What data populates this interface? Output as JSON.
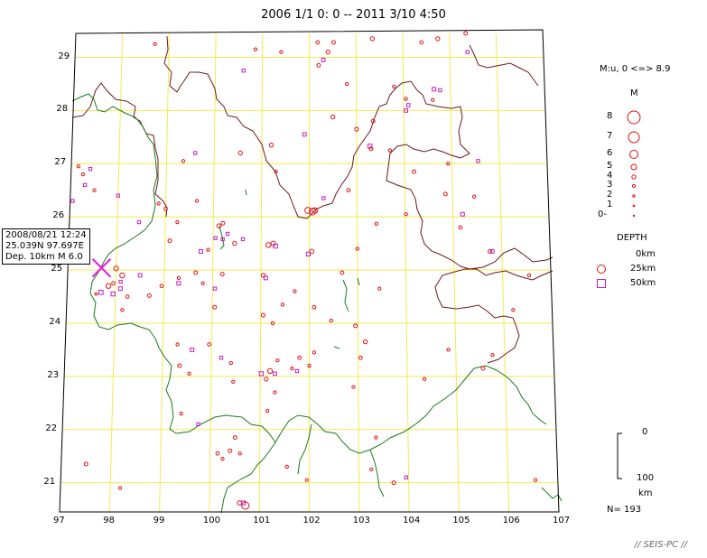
{
  "title": "2006 1/1  0: 0 -- 2011  3/10  4:50",
  "axes": {
    "lon_labels": [
      "97",
      "98",
      "99",
      "100",
      "101",
      "102",
      "103",
      "104",
      "105",
      "106",
      "107"
    ],
    "lat_labels": [
      "21",
      "22",
      "23",
      "24",
      "25",
      "26",
      "27",
      "28",
      "29"
    ]
  },
  "event_callout": {
    "line1": "2008/08/21 12:24",
    "line2": "25.039N  97.697E",
    "line3": "Dep. 10km    M 6.0",
    "lat": 25.039,
    "lon": 97.697,
    "depth_km": 10,
    "magnitude": 6.0
  },
  "legend": {
    "mag_range": "M:u, 0 <=> 8.9",
    "mag_heading": "M",
    "mag_labels": [
      "8",
      "7",
      "6",
      "5",
      "4",
      "3",
      "2",
      "1",
      "0-"
    ],
    "mag_values": [
      8,
      7,
      6,
      5,
      4,
      3,
      2,
      1,
      0
    ],
    "depth_heading": "DEPTH",
    "depth_labels": [
      "0km",
      "25km",
      "50km"
    ],
    "depth_scale_top": "0",
    "depth_scale_bottom": "100",
    "depth_scale_unit": "km",
    "count": "N= 193"
  },
  "credit": "// SEIS-PC //",
  "colors": {
    "graticule": "#f5ea50",
    "border_china": "#6b1a1a",
    "border_foreign": "#1a7a1a",
    "shallow": "#e01010",
    "mid": "#e01010",
    "deep": "#c020c0",
    "mainshock": "#e020e0"
  },
  "events": [
    {
      "lon": 102.07,
      "lat": 26.1,
      "m": 4.9,
      "d": "mid"
    },
    {
      "lon": 101.97,
      "lat": 26.12,
      "m": 4.5,
      "d": "mid"
    },
    {
      "lon": 102.12,
      "lat": 26.12,
      "m": 4.2,
      "d": "mid"
    },
    {
      "lon": 98.13,
      "lat": 24.9,
      "m": 4.0,
      "d": "mid"
    },
    {
      "lon": 98.0,
      "lat": 25.03,
      "m": 3.8,
      "d": "mid"
    },
    {
      "lon": 97.85,
      "lat": 24.7,
      "m": 3.9,
      "d": "mid"
    },
    {
      "lon": 97.7,
      "lat": 24.58,
      "m": 3.6,
      "d": "deep"
    },
    {
      "lon": 97.95,
      "lat": 24.55,
      "m": 3.5,
      "d": "deep"
    },
    {
      "lon": 98.1,
      "lat": 24.65,
      "m": 3.3,
      "d": "deep"
    },
    {
      "lon": 98.25,
      "lat": 24.5,
      "m": 3.2,
      "d": "mid"
    },
    {
      "lon": 98.5,
      "lat": 24.9,
      "m": 3.2,
      "d": "deep"
    },
    {
      "lon": 97.95,
      "lat": 24.75,
      "m": 3.2,
      "d": "mid"
    },
    {
      "lon": 98.1,
      "lat": 24.78,
      "m": 3.0,
      "d": "deep"
    },
    {
      "lon": 97.6,
      "lat": 24.55,
      "m": 2.8,
      "d": "mid"
    },
    {
      "lon": 100.72,
      "lat": 20.57,
      "m": 5.2,
      "d": "mid"
    },
    {
      "lon": 100.6,
      "lat": 20.62,
      "m": 3.6,
      "d": "mid"
    },
    {
      "lon": 100.68,
      "lat": 20.62,
      "m": 3.4,
      "d": "deep"
    },
    {
      "lon": 101.15,
      "lat": 25.47,
      "m": 4.0,
      "d": "mid"
    },
    {
      "lon": 101.25,
      "lat": 25.5,
      "m": 3.8,
      "d": "mid"
    },
    {
      "lon": 101.3,
      "lat": 25.45,
      "m": 3.5,
      "d": "deep"
    },
    {
      "lon": 101.05,
      "lat": 24.9,
      "m": 3.5,
      "d": "mid"
    },
    {
      "lon": 101.1,
      "lat": 24.85,
      "m": 3.3,
      "d": "deep"
    },
    {
      "lon": 101.2,
      "lat": 23.1,
      "m": 3.9,
      "d": "mid"
    },
    {
      "lon": 101.02,
      "lat": 23.05,
      "m": 3.5,
      "d": "deep"
    },
    {
      "lon": 101.12,
      "lat": 22.95,
      "m": 3.4,
      "d": "mid"
    },
    {
      "lon": 101.3,
      "lat": 23.05,
      "m": 3.2,
      "d": "deep"
    },
    {
      "lon": 102.05,
      "lat": 25.35,
      "m": 3.7,
      "d": "mid"
    },
    {
      "lon": 101.98,
      "lat": 25.3,
      "m": 3.4,
      "d": "deep"
    },
    {
      "lon": 102.4,
      "lat": 29.1,
      "m": 3.5,
      "d": "mid"
    },
    {
      "lon": 102.18,
      "lat": 29.28,
      "m": 3.2,
      "d": "mid"
    },
    {
      "lon": 102.52,
      "lat": 29.28,
      "m": 3.3,
      "d": "mid"
    },
    {
      "lon": 102.2,
      "lat": 28.85,
      "m": 3.3,
      "d": "mid"
    },
    {
      "lon": 102.3,
      "lat": 28.95,
      "m": 3.2,
      "d": "deep"
    },
    {
      "lon": 103.35,
      "lat": 29.35,
      "m": 3.5,
      "d": "mid"
    },
    {
      "lon": 104.75,
      "lat": 29.35,
      "m": 3.5,
      "d": "mid"
    },
    {
      "lon": 104.4,
      "lat": 29.28,
      "m": 3.2,
      "d": "mid"
    },
    {
      "lon": 105.35,
      "lat": 29.45,
      "m": 3.3,
      "d": "mid"
    },
    {
      "lon": 105.38,
      "lat": 29.1,
      "m": 3.0,
      "d": "deep"
    },
    {
      "lon": 104.65,
      "lat": 28.4,
      "m": 3.3,
      "d": "deep"
    },
    {
      "lon": 104.78,
      "lat": 28.38,
      "m": 3.0,
      "d": "deep"
    },
    {
      "lon": 104.62,
      "lat": 28.2,
      "m": 3.0,
      "d": "mid"
    },
    {
      "lon": 104.05,
      "lat": 28.0,
      "m": 3.2,
      "d": "deep"
    },
    {
      "lon": 104.05,
      "lat": 28.22,
      "m": 3.0,
      "d": "mid"
    },
    {
      "lon": 104.1,
      "lat": 28.1,
      "m": 3.1,
      "d": "deep"
    },
    {
      "lon": 103.35,
      "lat": 27.8,
      "m": 3.3,
      "d": "mid"
    },
    {
      "lon": 103.28,
      "lat": 27.33,
      "m": 3.5,
      "d": "deep"
    },
    {
      "lon": 103.3,
      "lat": 27.28,
      "m": 3.3,
      "d": "mid"
    },
    {
      "lon": 103.0,
      "lat": 27.65,
      "m": 3.4,
      "d": "mid"
    },
    {
      "lon": 102.5,
      "lat": 27.88,
      "m": 3.5,
      "d": "mid"
    },
    {
      "lon": 101.9,
      "lat": 27.55,
      "m": 3.2,
      "d": "deep"
    },
    {
      "lon": 101.2,
      "lat": 27.35,
      "m": 3.5,
      "d": "mid"
    },
    {
      "lon": 100.55,
      "lat": 27.2,
      "m": 3.5,
      "d": "mid"
    },
    {
      "lon": 100.6,
      "lat": 28.75,
      "m": 3.0,
      "d": "deep"
    },
    {
      "lon": 103.7,
      "lat": 27.25,
      "m": 3.0,
      "d": "mid"
    },
    {
      "lon": 102.82,
      "lat": 26.5,
      "m": 3.2,
      "d": "mid"
    },
    {
      "lon": 104.2,
      "lat": 26.85,
      "m": 3.3,
      "d": "mid"
    },
    {
      "lon": 104.02,
      "lat": 26.05,
      "m": 3.0,
      "d": "mid"
    },
    {
      "lon": 104.85,
      "lat": 26.43,
      "m": 3.3,
      "d": "mid"
    },
    {
      "lon": 103.4,
      "lat": 25.87,
      "m": 3.0,
      "d": "mid"
    },
    {
      "lon": 102.68,
      "lat": 24.95,
      "m": 3.3,
      "d": "mid"
    },
    {
      "lon": 100.2,
      "lat": 25.88,
      "m": 3.3,
      "d": "mid"
    },
    {
      "lon": 100.12,
      "lat": 25.83,
      "m": 3.6,
      "d": "mid"
    },
    {
      "lon": 100.3,
      "lat": 25.68,
      "m": 3.0,
      "d": "deep"
    },
    {
      "lon": 100.05,
      "lat": 25.6,
      "m": 3.0,
      "d": "deep"
    },
    {
      "lon": 100.2,
      "lat": 25.58,
      "m": 3.0,
      "d": "deep"
    },
    {
      "lon": 99.75,
      "lat": 25.35,
      "m": 3.3,
      "d": "deep"
    },
    {
      "lon": 99.9,
      "lat": 25.38,
      "m": 3.0,
      "d": "mid"
    },
    {
      "lon": 99.65,
      "lat": 26.3,
      "m": 3.0,
      "d": "mid"
    },
    {
      "lon": 99.0,
      "lat": 26.15,
      "m": 3.2,
      "d": "mid"
    },
    {
      "lon": 99.1,
      "lat": 25.55,
      "m": 3.3,
      "d": "mid"
    },
    {
      "lon": 100.45,
      "lat": 25.5,
      "m": 3.5,
      "d": "mid"
    },
    {
      "lon": 100.62,
      "lat": 25.58,
      "m": 3.0,
      "d": "deep"
    },
    {
      "lon": 99.3,
      "lat": 24.75,
      "m": 3.3,
      "d": "deep"
    },
    {
      "lon": 99.3,
      "lat": 24.85,
      "m": 3.0,
      "d": "mid"
    },
    {
      "lon": 99.65,
      "lat": 24.95,
      "m": 3.3,
      "d": "mid"
    },
    {
      "lon": 99.8,
      "lat": 24.75,
      "m": 3.0,
      "d": "mid"
    },
    {
      "lon": 100.2,
      "lat": 24.92,
      "m": 3.3,
      "d": "mid"
    },
    {
      "lon": 100.05,
      "lat": 24.65,
      "m": 3.0,
      "d": "deep"
    },
    {
      "lon": 98.7,
      "lat": 24.52,
      "m": 3.3,
      "d": "mid"
    },
    {
      "lon": 98.95,
      "lat": 24.7,
      "m": 3.2,
      "d": "mid"
    },
    {
      "lon": 99.6,
      "lat": 23.5,
      "m": 3.3,
      "d": "deep"
    },
    {
      "lon": 99.35,
      "lat": 23.2,
      "m": 3.3,
      "d": "mid"
    },
    {
      "lon": 99.3,
      "lat": 23.6,
      "m": 3.0,
      "d": "mid"
    },
    {
      "lon": 99.55,
      "lat": 23.05,
      "m": 3.0,
      "d": "mid"
    },
    {
      "lon": 100.05,
      "lat": 24.3,
      "m": 3.3,
      "d": "mid"
    },
    {
      "lon": 99.95,
      "lat": 23.6,
      "m": 3.2,
      "d": "mid"
    },
    {
      "lon": 100.2,
      "lat": 23.35,
      "m": 3.0,
      "d": "deep"
    },
    {
      "lon": 100.4,
      "lat": 23.25,
      "m": 3.0,
      "d": "mid"
    },
    {
      "lon": 101.05,
      "lat": 24.15,
      "m": 3.3,
      "d": "mid"
    },
    {
      "lon": 101.25,
      "lat": 24.0,
      "m": 3.0,
      "d": "mid"
    },
    {
      "lon": 101.3,
      "lat": 22.7,
      "m": 3.0,
      "d": "mid"
    },
    {
      "lon": 101.15,
      "lat": 22.35,
      "m": 3.0,
      "d": "mid"
    },
    {
      "lon": 101.8,
      "lat": 23.35,
      "m": 3.2,
      "d": "mid"
    },
    {
      "lon": 101.65,
      "lat": 23.15,
      "m": 3.0,
      "d": "mid"
    },
    {
      "lon": 101.35,
      "lat": 23.3,
      "m": 3.0,
      "d": "mid"
    },
    {
      "lon": 101.75,
      "lat": 23.1,
      "m": 3.0,
      "d": "deep"
    },
    {
      "lon": 102.1,
      "lat": 23.45,
      "m": 3.0,
      "d": "mid"
    },
    {
      "lon": 102.0,
      "lat": 23.2,
      "m": 3.0,
      "d": "mid"
    },
    {
      "lon": 102.1,
      "lat": 24.3,
      "m": 3.2,
      "d": "mid"
    },
    {
      "lon": 102.45,
      "lat": 24.05,
      "m": 3.0,
      "d": "mid"
    },
    {
      "lon": 102.95,
      "lat": 23.95,
      "m": 3.3,
      "d": "mid"
    },
    {
      "lon": 103.15,
      "lat": 23.65,
      "m": 3.5,
      "d": "mid"
    },
    {
      "lon": 103.05,
      "lat": 23.35,
      "m": 3.2,
      "d": "mid"
    },
    {
      "lon": 102.9,
      "lat": 22.8,
      "m": 3.0,
      "d": "mid"
    },
    {
      "lon": 103.35,
      "lat": 21.85,
      "m": 3.0,
      "d": "mid"
    },
    {
      "lon": 103.25,
      "lat": 21.25,
      "m": 3.0,
      "d": "mid"
    },
    {
      "lon": 103.7,
      "lat": 21.0,
      "m": 3.3,
      "d": "mid"
    },
    {
      "lon": 103.95,
      "lat": 21.1,
      "m": 3.0,
      "d": "deep"
    },
    {
      "lon": 104.85,
      "lat": 23.5,
      "m": 3.0,
      "d": "mid"
    },
    {
      "lon": 104.35,
      "lat": 22.95,
      "m": 3.0,
      "d": "mid"
    },
    {
      "lon": 105.55,
      "lat": 23.15,
      "m": 3.3,
      "d": "mid"
    },
    {
      "lon": 105.75,
      "lat": 23.4,
      "m": 3.0,
      "d": "mid"
    },
    {
      "lon": 105.15,
      "lat": 25.8,
      "m": 3.2,
      "d": "mid"
    },
    {
      "lon": 105.75,
      "lat": 25.35,
      "m": 3.3,
      "d": "mid"
    },
    {
      "lon": 105.8,
      "lat": 25.35,
      "m": 3.2,
      "d": "deep"
    },
    {
      "lon": 106.55,
      "lat": 24.9,
      "m": 3.0,
      "d": "mid"
    },
    {
      "lon": 105.2,
      "lat": 26.05,
      "m": 3.3,
      "d": "deep"
    },
    {
      "lon": 105.45,
      "lat": 26.38,
      "m": 3.0,
      "d": "mid"
    },
    {
      "lon": 104.92,
      "lat": 27.0,
      "m": 3.0,
      "d": "mid"
    },
    {
      "lon": 105.55,
      "lat": 27.05,
      "m": 3.0,
      "d": "deep"
    },
    {
      "lon": 106.2,
      "lat": 24.25,
      "m": 3.0,
      "d": "mid"
    },
    {
      "lon": 106.55,
      "lat": 21.05,
      "m": 3.0,
      "d": "mid"
    },
    {
      "lon": 101.95,
      "lat": 21.05,
      "m": 3.0,
      "d": "mid"
    },
    {
      "lon": 100.5,
      "lat": 21.85,
      "m": 3.3,
      "d": "mid"
    },
    {
      "lon": 100.6,
      "lat": 21.55,
      "m": 3.0,
      "d": "mid"
    },
    {
      "lon": 100.4,
      "lat": 21.6,
      "m": 3.3,
      "d": "mid"
    },
    {
      "lon": 100.25,
      "lat": 21.45,
      "m": 3.0,
      "d": "mid"
    },
    {
      "lon": 100.15,
      "lat": 21.55,
      "m": 3.2,
      "d": "mid"
    },
    {
      "lon": 99.75,
      "lat": 22.1,
      "m": 3.0,
      "d": "deep"
    },
    {
      "lon": 98.2,
      "lat": 20.9,
      "m": 3.0,
      "d": "mid"
    },
    {
      "lon": 97.5,
      "lat": 21.35,
      "m": 3.3,
      "d": "mid"
    },
    {
      "lon": 97.5,
      "lat": 26.5,
      "m": 3.0,
      "d": "mid"
    },
    {
      "lon": 97.3,
      "lat": 26.6,
      "m": 3.0,
      "d": "deep"
    },
    {
      "lon": 97.4,
      "lat": 26.9,
      "m": 3.0,
      "d": "deep"
    },
    {
      "lon": 97.15,
      "lat": 26.95,
      "m": 3.0,
      "d": "mid"
    },
    {
      "lon": 97.25,
      "lat": 26.8,
      "m": 3.0,
      "d": "mid"
    },
    {
      "lon": 97.05,
      "lat": 26.3,
      "m": 3.0,
      "d": "deep"
    },
    {
      "lon": 98.0,
      "lat": 26.4,
      "m": 3.0,
      "d": "deep"
    },
    {
      "lon": 99.6,
      "lat": 27.2,
      "m": 3.0,
      "d": "deep"
    },
    {
      "lon": 99.35,
      "lat": 27.05,
      "m": 3.0,
      "d": "mid"
    },
    {
      "lon": 98.85,
      "lat": 26.25,
      "m": 3.0,
      "d": "mid"
    },
    {
      "lon": 98.45,
      "lat": 25.9,
      "m": 3.0,
      "d": "deep"
    },
    {
      "lon": 99.25,
      "lat": 25.9,
      "m": 3.0,
      "d": "mid"
    },
    {
      "lon": 98.15,
      "lat": 24.25,
      "m": 3.0,
      "d": "mid"
    },
    {
      "lon": 101.45,
      "lat": 24.35,
      "m": 3.0,
      "d": "mid"
    },
    {
      "lon": 101.7,
      "lat": 24.6,
      "m": 3.0,
      "d": "mid"
    },
    {
      "lon": 103.0,
      "lat": 25.4,
      "m": 3.0,
      "d": "mid"
    },
    {
      "lon": 103.45,
      "lat": 24.65,
      "m": 3.0,
      "d": "mid"
    },
    {
      "lon": 102.8,
      "lat": 28.5,
      "m": 3.0,
      "d": "mid"
    },
    {
      "lon": 103.8,
      "lat": 28.45,
      "m": 3.0,
      "d": "mid"
    },
    {
      "lon": 101.4,
      "lat": 29.1,
      "m": 3.0,
      "d": "mid"
    },
    {
      "lon": 100.85,
      "lat": 29.15,
      "m": 3.0,
      "d": "mid"
    },
    {
      "lon": 101.3,
      "lat": 26.85,
      "m": 3.0,
      "d": "mid"
    },
    {
      "lon": 102.3,
      "lat": 26.35,
      "m": 3.0,
      "d": "deep"
    },
    {
      "lon": 98.7,
      "lat": 29.25,
      "m": 3.0,
      "d": "mid"
    },
    {
      "lon": 101.55,
      "lat": 21.3,
      "m": 3.0,
      "d": "mid"
    },
    {
      "lon": 100.45,
      "lat": 22.9,
      "m": 3.0,
      "d": "mid"
    },
    {
      "lon": 99.4,
      "lat": 22.3,
      "m": 3.0,
      "d": "mid"
    }
  ]
}
